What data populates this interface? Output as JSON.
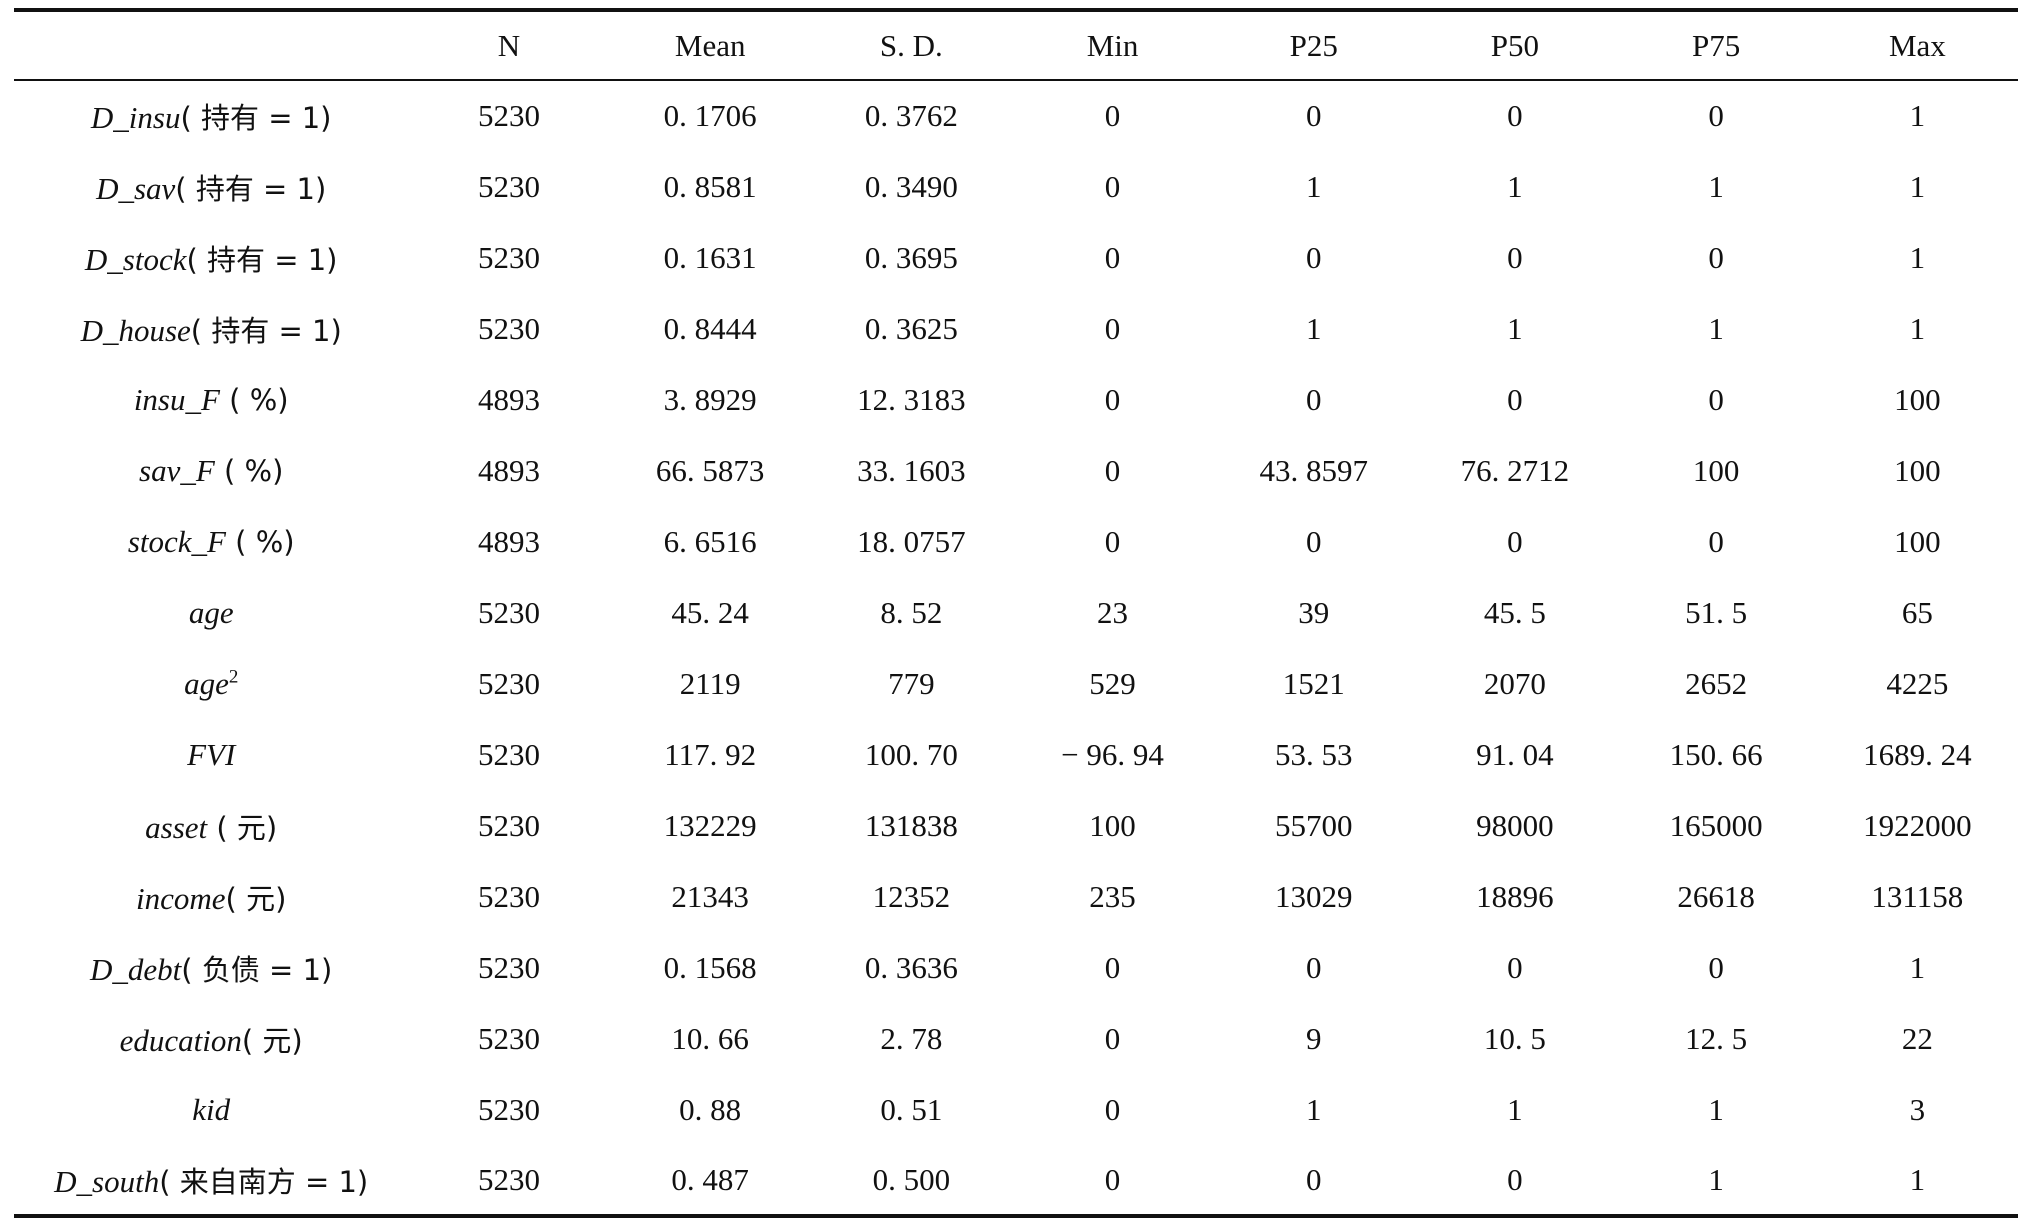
{
  "table": {
    "headers": [
      "",
      "N",
      "Mean",
      "S. D.",
      "Min",
      "P25",
      "P50",
      "P75",
      "Max"
    ],
    "rows": [
      {
        "var": "D_insu",
        "sup": "",
        "note": "( 持有 = 1)",
        "values": [
          "5230",
          "0. 1706",
          "0. 3762",
          "0",
          "0",
          "0",
          "0",
          "1"
        ]
      },
      {
        "var": "D_sav",
        "sup": "",
        "note": "( 持有 = 1)",
        "values": [
          "5230",
          "0. 8581",
          "0. 3490",
          "0",
          "1",
          "1",
          "1",
          "1"
        ]
      },
      {
        "var": "D_stock",
        "sup": "",
        "note": "( 持有 = 1)",
        "values": [
          "5230",
          "0. 1631",
          "0. 3695",
          "0",
          "0",
          "0",
          "0",
          "1"
        ]
      },
      {
        "var": "D_house",
        "sup": "",
        "note": "( 持有 = 1)",
        "values": [
          "5230",
          "0. 8444",
          "0. 3625",
          "0",
          "1",
          "1",
          "1",
          "1"
        ]
      },
      {
        "var": "insu_F",
        "sup": "",
        "note": " ( %)",
        "values": [
          "4893",
          "3. 8929",
          "12. 3183",
          "0",
          "0",
          "0",
          "0",
          "100"
        ]
      },
      {
        "var": "sav_F",
        "sup": "",
        "note": " ( %)",
        "values": [
          "4893",
          "66. 5873",
          "33. 1603",
          "0",
          "43. 8597",
          "76. 2712",
          "100",
          "100"
        ]
      },
      {
        "var": "stock_F",
        "sup": "",
        "note": " ( %)",
        "values": [
          "4893",
          "6. 6516",
          "18. 0757",
          "0",
          "0",
          "0",
          "0",
          "100"
        ]
      },
      {
        "var": "age",
        "sup": "",
        "note": "",
        "values": [
          "5230",
          "45. 24",
          "8. 52",
          "23",
          "39",
          "45. 5",
          "51. 5",
          "65"
        ]
      },
      {
        "var": "age",
        "sup": "2",
        "note": "",
        "values": [
          "5230",
          "2119",
          "779",
          "529",
          "1521",
          "2070",
          "2652",
          "4225"
        ]
      },
      {
        "var": "FVI",
        "sup": "",
        "note": "",
        "values": [
          "5230",
          "117. 92",
          "100. 70",
          "− 96. 94",
          "53. 53",
          "91. 04",
          "150. 66",
          "1689. 24"
        ]
      },
      {
        "var": "asset",
        "sup": "",
        "note": " ( 元)",
        "values": [
          "5230",
          "132229",
          "131838",
          "100",
          "55700",
          "98000",
          "165000",
          "1922000"
        ]
      },
      {
        "var": "income",
        "sup": "",
        "note": "( 元)",
        "values": [
          "5230",
          "21343",
          "12352",
          "235",
          "13029",
          "18896",
          "26618",
          "131158"
        ]
      },
      {
        "var": "D_debt",
        "sup": "",
        "note": "( 负债 = 1)",
        "values": [
          "5230",
          "0. 1568",
          "0. 3636",
          "0",
          "0",
          "0",
          "0",
          "1"
        ]
      },
      {
        "var": "education",
        "sup": "",
        "note": "( 元)",
        "values": [
          "5230",
          "10. 66",
          "2. 78",
          "0",
          "9",
          "10. 5",
          "12. 5",
          "22"
        ]
      },
      {
        "var": "kid",
        "sup": "",
        "note": "",
        "values": [
          "5230",
          "0. 88",
          "0. 51",
          "0",
          "1",
          "1",
          "1",
          "3"
        ]
      },
      {
        "var": "D_south",
        "sup": "",
        "note": "( 来自南方 = 1)",
        "values": [
          "5230",
          "0. 487",
          "0. 500",
          "0",
          "0",
          "0",
          "1",
          "1"
        ]
      }
    ]
  }
}
